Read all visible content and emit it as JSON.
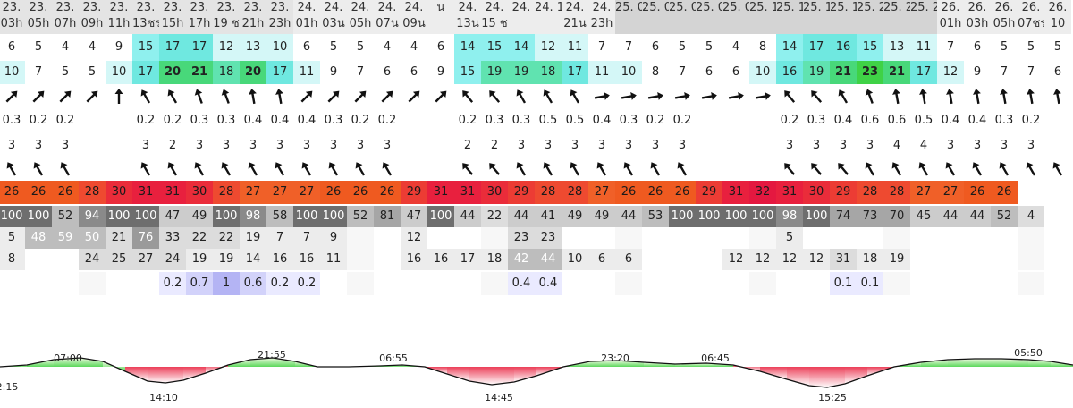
{
  "table": {
    "columns": [
      {
        "d": "23.",
        "h": "03h",
        "bg": "#e4e4e4"
      },
      {
        "d": "23.",
        "h": "05h",
        "bg": "#e4e4e4"
      },
      {
        "d": "23.",
        "h": "07h",
        "bg": "#e4e4e4"
      },
      {
        "d": "23.",
        "h": "09h",
        "bg": "#e4e4e4"
      },
      {
        "d": "23.",
        "h": "11h",
        "bg": "#e4e4e4"
      },
      {
        "d": "23.",
        "h": "13ชร",
        "bg": "#e4e4e4"
      },
      {
        "d": "23.",
        "h": "15h",
        "bg": "#e4e4e4"
      },
      {
        "d": "23.",
        "h": "17h",
        "bg": "#e4e4e4"
      },
      {
        "d": "23.",
        "h": "19 ช",
        "bg": "#e4e4e4"
      },
      {
        "d": "23.",
        "h": "21h",
        "bg": "#e4e4e4"
      },
      {
        "d": "23.",
        "h": "23h",
        "bg": "#e4e4e4"
      },
      {
        "d": "24.",
        "h": "01h",
        "bg": "#ededed"
      },
      {
        "d": "24.",
        "h": "03น",
        "bg": "#ededed"
      },
      {
        "d": "24.",
        "h": "05h",
        "bg": "#ededed"
      },
      {
        "d": "24.",
        "h": "07น",
        "bg": "#ededed"
      },
      {
        "d": "24.",
        "h": "09น",
        "bg": "#ededed"
      },
      {
        "d": "น",
        "h": "",
        "bg": "#ededed"
      },
      {
        "d": "24.",
        "h": "13น",
        "bg": "#ededed"
      },
      {
        "d": "24.",
        "h": "15 ช",
        "bg": "#ededed"
      },
      {
        "d": "24.",
        "h": "",
        "bg": "#ededed"
      },
      {
        "d": "24. 1",
        "h": "",
        "bg": "#ededed"
      },
      {
        "d": "24.",
        "h": "21น",
        "bg": "#ededed"
      },
      {
        "d": "24.",
        "h": "23h",
        "bg": "#ededed"
      },
      {
        "d": "25. 0",
        "h": "",
        "bg": "#d4d4d4"
      },
      {
        "d": "25. 0",
        "h": "",
        "bg": "#d4d4d4"
      },
      {
        "d": "25. 0",
        "h": "",
        "bg": "#d4d4d4"
      },
      {
        "d": "25. 0",
        "h": "",
        "bg": "#d4d4d4"
      },
      {
        "d": "25. 0",
        "h": "",
        "bg": "#d4d4d4"
      },
      {
        "d": "25. 1",
        "h": "",
        "bg": "#d4d4d4"
      },
      {
        "d": "25. 1",
        "h": "",
        "bg": "#d4d4d4"
      },
      {
        "d": "25. 1",
        "h": "",
        "bg": "#d4d4d4"
      },
      {
        "d": "25. 1",
        "h": "",
        "bg": "#d4d4d4"
      },
      {
        "d": "25. 2",
        "h": "",
        "bg": "#d4d4d4"
      },
      {
        "d": "25. 2",
        "h": "",
        "bg": "#d4d4d4"
      },
      {
        "d": "25. 2",
        "h": "",
        "bg": "#d4d4d4"
      },
      {
        "d": "26.",
        "h": "01h",
        "bg": "#ededed"
      },
      {
        "d": "26.",
        "h": "03h",
        "bg": "#ededed"
      },
      {
        "d": "26.",
        "h": "05h",
        "bg": "#ededed"
      },
      {
        "d": "26.",
        "h": "07ชร",
        "bg": "#ededed"
      },
      {
        "d": "26.",
        "h": "10",
        "bg": "#ededed"
      }
    ],
    "rows": [
      {
        "key": "wind",
        "top": 38,
        "h": 30,
        "values": [
          "6",
          "5",
          "4",
          "4",
          "9",
          "15",
          "17",
          "17",
          "12",
          "13",
          "10",
          "6",
          "5",
          "5",
          "4",
          "4",
          "6",
          "14",
          "15",
          "14",
          "12",
          "11",
          "7",
          "7",
          "6",
          "5",
          "5",
          "4",
          "8",
          "14",
          "17",
          "16",
          "15",
          "13",
          "11",
          "7",
          "6",
          "5",
          "5",
          "5"
        ],
        "bold": []
      },
      {
        "key": "gust",
        "top": 68,
        "h": 26,
        "values": [
          "10",
          "7",
          "5",
          "5",
          "10",
          "17",
          "20",
          "21",
          "18",
          "20",
          "17",
          "11",
          "9",
          "7",
          "6",
          "6",
          "9",
          "15",
          "19",
          "19",
          "18",
          "17",
          "11",
          "10",
          "8",
          "7",
          "6",
          "6",
          "10",
          "16",
          "19",
          "21",
          "23",
          "21",
          "17",
          "12",
          "9",
          "7",
          "7",
          "6"
        ],
        "bold": [
          "21",
          "20",
          "23"
        ]
      },
      {
        "key": "wave_h",
        "top": 122,
        "h": 26,
        "values": [
          "0.3",
          "0.2",
          "0.2",
          "",
          "",
          "0.2",
          "0.2",
          "0.3",
          "0.3",
          "0.4",
          "0.4",
          "0.4",
          "0.3",
          "0.2",
          "0.2",
          "",
          "",
          "0.2",
          "0.3",
          "0.3",
          "0.5",
          "0.5",
          "0.4",
          "0.3",
          "0.2",
          "0.2",
          "",
          "",
          "",
          "0.2",
          "0.3",
          "0.4",
          "0.6",
          "0.6",
          "0.5",
          "0.4",
          "0.4",
          "0.3",
          "0.2",
          ""
        ],
        "bold": []
      },
      {
        "key": "wave_p",
        "top": 148,
        "h": 30,
        "values": [
          "3",
          "3",
          "3",
          "",
          "",
          "3",
          "2",
          "3",
          "3",
          "3",
          "3",
          "3",
          "3",
          "3",
          "3",
          "",
          "",
          "2",
          "2",
          "3",
          "3",
          "3",
          "3",
          "3",
          "3",
          "3",
          "",
          "",
          "",
          "3",
          "3",
          "3",
          "3",
          "4",
          "4",
          "3",
          "3",
          "3",
          "3",
          ""
        ],
        "bold": []
      },
      {
        "key": "temp",
        "top": 202,
        "h": 26,
        "values": [
          "26",
          "26",
          "26",
          "28",
          "30",
          "31",
          "31",
          "30",
          "28",
          "27",
          "27",
          "27",
          "26",
          "26",
          "26",
          "29",
          "31",
          "31",
          "30",
          "29",
          "28",
          "28",
          "27",
          "26",
          "26",
          "26",
          "29",
          "31",
          "32",
          "31",
          "30",
          "29",
          "28",
          "28",
          "27",
          "27",
          "26",
          "26",
          "",
          ""
        ],
        "bold": []
      },
      {
        "key": "cloud",
        "top": 230,
        "h": 24,
        "values": [
          "100",
          "100",
          "52",
          "94",
          "100",
          "100",
          "47",
          "49",
          "100",
          "98",
          "58",
          "100",
          "100",
          "52",
          "81",
          "47",
          "100",
          "44",
          "22",
          "44",
          "41",
          "49",
          "49",
          "44",
          "53",
          "100",
          "100",
          "100",
          "100",
          "98",
          "100",
          "74",
          "73",
          "70",
          "45",
          "44",
          "44",
          "52",
          "4",
          ""
        ],
        "bold": []
      },
      {
        "key": "c1",
        "top": 254,
        "h": 24,
        "values": [
          "5",
          "48",
          "59",
          "50",
          "21",
          "76",
          "33",
          "22",
          "22",
          "19",
          "7",
          "7",
          "9",
          "",
          "",
          "12",
          "",
          "",
          "",
          "23",
          "23",
          "",
          "",
          "",
          "",
          "",
          "",
          "",
          "",
          "5",
          "",
          "",
          "",
          "",
          "",
          "",
          "",
          "",
          "",
          ""
        ],
        "bold": []
      },
      {
        "key": "c2",
        "top": 278,
        "h": 24,
        "values": [
          "8",
          "",
          "",
          "24",
          "25",
          "27",
          "24",
          "19",
          "19",
          "14",
          "16",
          "16",
          "11",
          "",
          "",
          "16",
          "16",
          "17",
          "18",
          "42",
          "44",
          "10",
          "6",
          "6",
          "",
          "",
          "",
          "12",
          "12",
          "12",
          "12",
          "31",
          "18",
          "19",
          "",
          "",
          "",
          "",
          "",
          ""
        ],
        "bold": []
      },
      {
        "key": "rain",
        "top": 304,
        "h": 26,
        "values": [
          "",
          "",
          "",
          "",
          "",
          "",
          "0.2",
          "0.7",
          "1",
          "0.6",
          "0.2",
          "0.2",
          "",
          "",
          "",
          "",
          "",
          "",
          "",
          "0.4",
          "0.4",
          "",
          "",
          "",
          "",
          "",
          "",
          "",
          "",
          "",
          "",
          "0.1",
          "0.1",
          "",
          "",
          "",
          "",
          "",
          "",
          ""
        ],
        "bold": []
      }
    ],
    "wind_dirs": [
      45,
      45,
      45,
      45,
      0,
      -30,
      -30,
      -20,
      -20,
      -10,
      -10,
      45,
      45,
      45,
      45,
      45,
      45,
      -40,
      -40,
      -30,
      -30,
      -30,
      80,
      80,
      80,
      80,
      80,
      80,
      80,
      -40,
      -40,
      -30,
      -20,
      -10,
      -10,
      -10,
      -10,
      -10,
      -10,
      -10
    ],
    "wave_dirs": [
      -30,
      -30,
      -30,
      "",
      "",
      -30,
      -30,
      -30,
      -30,
      -30,
      -30,
      -30,
      -30,
      -30,
      -30,
      "",
      "",
      -40,
      -40,
      -30,
      -30,
      -30,
      -30,
      -30,
      -30,
      -30,
      "",
      "",
      "",
      -40,
      -40,
      -40,
      -30,
      -30,
      -30,
      -30,
      -30,
      -30,
      -30,
      -30
    ]
  },
  "tide": {
    "labels": [
      {
        "t": "2:15"
      },
      {
        "t": "07:00"
      },
      {
        "t": "14:10"
      },
      {
        "t": "21:55"
      },
      {
        "t": "06:55"
      },
      {
        "t": "14:45"
      },
      {
        "t": "23:20"
      },
      {
        "t": "06:45"
      },
      {
        "t": "15:25"
      },
      {
        "t": "05:50"
      }
    ]
  }
}
